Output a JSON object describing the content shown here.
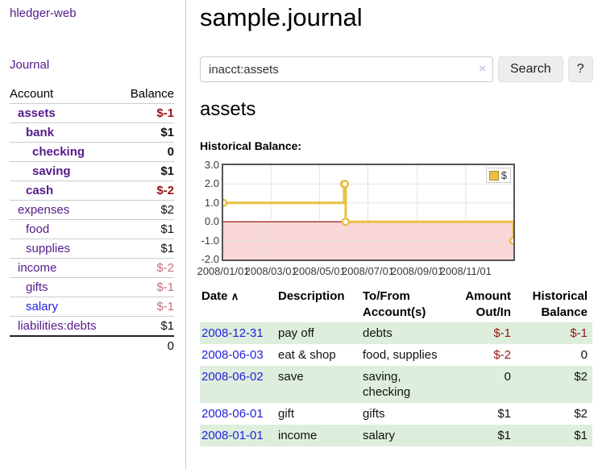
{
  "sidebar": {
    "brand": "hledger-web",
    "journal_link": "Journal",
    "accounts": {
      "headers": {
        "account": "Account",
        "balance": "Balance"
      },
      "rows": [
        {
          "name": "assets",
          "balance": "$-1"
        },
        {
          "name": "bank",
          "balance": "$1"
        },
        {
          "name": "checking",
          "balance": "0"
        },
        {
          "name": "saving",
          "balance": "$1"
        },
        {
          "name": "cash",
          "balance": "$-2"
        },
        {
          "name": "expenses",
          "balance": "$2"
        },
        {
          "name": "food",
          "balance": "$1"
        },
        {
          "name": "supplies",
          "balance": "$1"
        },
        {
          "name": "income",
          "balance": "$-2"
        },
        {
          "name": "gifts",
          "balance": "$-1"
        },
        {
          "name": "salary",
          "balance": "$-1"
        },
        {
          "name": "liabilities:debts",
          "balance": "$1"
        }
      ],
      "total": "0"
    }
  },
  "main": {
    "title": "sample.journal",
    "search": {
      "value": "inacct:assets",
      "clear_icon": "×",
      "button_label": "Search",
      "help_label": "?"
    },
    "account_heading": "assets",
    "chart_label": "Historical Balance:",
    "register": {
      "headers": {
        "date": "Date",
        "sort_icon": "∧",
        "description": "Description",
        "tofrom_line1": "To/From",
        "tofrom_line2": "Account(s)",
        "amount_line1": "Amount",
        "amount_line2": "Out/In",
        "balance_line1": "Historical",
        "balance_line2": "Balance"
      },
      "rows": [
        {
          "date": "2008-12-31",
          "description": "pay off",
          "accounts": "debts",
          "amount": "$-1",
          "balance": "$-1"
        },
        {
          "date": "2008-06-03",
          "description": "eat & shop",
          "accounts": "food, supplies",
          "amount": "$-2",
          "balance": "0"
        },
        {
          "date": "2008-06-02",
          "description": "save",
          "accounts": "saving, checking",
          "amount": "0",
          "balance": "$2"
        },
        {
          "date": "2008-06-01",
          "description": "gift",
          "accounts": "gifts",
          "amount": "$1",
          "balance": "$2"
        },
        {
          "date": "2008-01-01",
          "description": "income",
          "accounts": "salary",
          "amount": "$1",
          "balance": "$1"
        }
      ]
    }
  },
  "chart_data": {
    "type": "line",
    "step": true,
    "title": "Historical Balance",
    "xlabel": "",
    "ylabel": "",
    "xlim": [
      "2008-01-01",
      "2008-12-31"
    ],
    "ylim": [
      -2,
      3
    ],
    "x_ticks": [
      "2008/01/01",
      "2008/03/01",
      "2008/05/01",
      "2008/07/01",
      "2008/09/01",
      "2008/11/01"
    ],
    "y_ticks": [
      "3.0",
      "2.0",
      "1.0",
      "0.0",
      "-1.0",
      "-2.0"
    ],
    "grid": true,
    "grid_color": "#e4e4e4",
    "zero_line_color": "#8b0000",
    "negative_region_color": "#f9d7d7",
    "legend": {
      "position": "ne",
      "label": "$",
      "swatch_color": "#e9c044"
    },
    "series": [
      {
        "name": "$",
        "color": "#e9c044",
        "points": [
          [
            "2008-01-01",
            1
          ],
          [
            "2008-06-01",
            2
          ],
          [
            "2008-06-02",
            2
          ],
          [
            "2008-06-03",
            0
          ],
          [
            "2008-12-31",
            -1
          ]
        ]
      }
    ]
  }
}
